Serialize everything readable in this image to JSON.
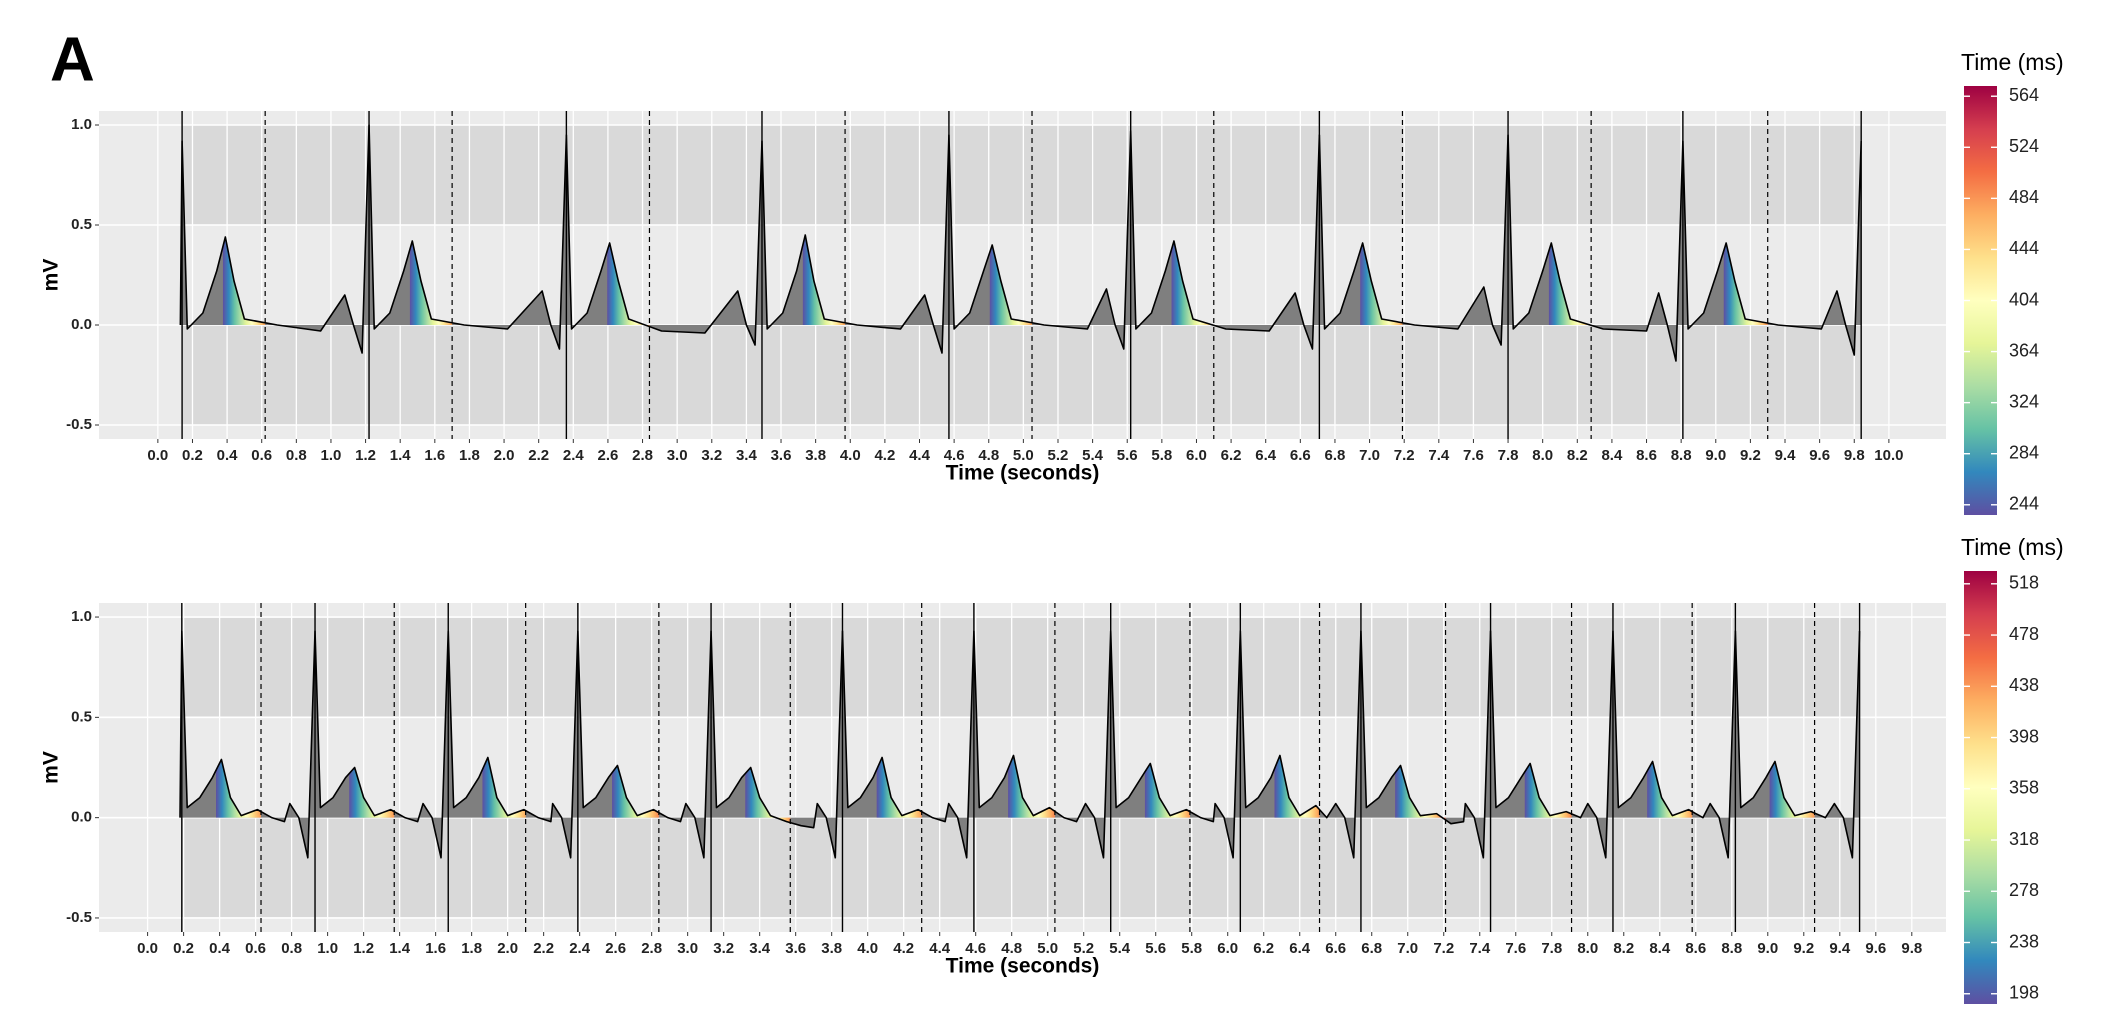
{
  "panel_label": "A",
  "chart_data": [
    {
      "type": "line",
      "x_label": "Time (seconds)",
      "y_label": "mV",
      "x": [
        0.13,
        0.14,
        0.17,
        0.26,
        0.34,
        0.39,
        0.44,
        0.5,
        0.69,
        0.94,
        1.08,
        1.13,
        1.18,
        1.22,
        1.25,
        1.34,
        1.42,
        1.47,
        1.52,
        1.58,
        1.77,
        2.02,
        2.22,
        2.27,
        2.32,
        2.36,
        2.39,
        2.48,
        2.56,
        2.61,
        2.66,
        2.72,
        2.91,
        3.16,
        3.35,
        3.4,
        3.45,
        3.49,
        3.52,
        3.61,
        3.69,
        3.74,
        3.79,
        3.85,
        4.04,
        4.29,
        4.43,
        4.48,
        4.53,
        4.57,
        4.6,
        4.69,
        4.77,
        4.82,
        4.87,
        4.93,
        5.12,
        5.37,
        5.48,
        5.53,
        5.58,
        5.62,
        5.65,
        5.74,
        5.82,
        5.87,
        5.92,
        5.98,
        6.17,
        6.42,
        6.57,
        6.62,
        6.67,
        6.71,
        6.74,
        6.83,
        6.91,
        6.96,
        7.01,
        7.07,
        7.26,
        7.51,
        7.66,
        7.71,
        7.76,
        7.8,
        7.83,
        7.92,
        8.0,
        8.05,
        8.1,
        8.16,
        8.35,
        8.6,
        8.67,
        8.72,
        8.77,
        8.81,
        8.84,
        8.93,
        9.01,
        9.06,
        9.11,
        9.17,
        9.36,
        9.61,
        9.7,
        9.75,
        9.8,
        9.84
      ],
      "y": [
        0,
        0.92,
        -0.02,
        0.06,
        0.27,
        0.44,
        0.22,
        0.03,
        0,
        -0.03,
        0.15,
        0,
        -0.14,
        1.0,
        -0.02,
        0.06,
        0.27,
        0.42,
        0.22,
        0.03,
        0,
        -0.02,
        0.17,
        0,
        -0.12,
        0.95,
        -0.02,
        0.06,
        0.27,
        0.41,
        0.22,
        0.03,
        -0.03,
        -0.04,
        0.17,
        0,
        -0.1,
        0.92,
        -0.02,
        0.06,
        0.27,
        0.45,
        0.22,
        0.03,
        0,
        -0.02,
        0.15,
        0,
        -0.14,
        0.95,
        -0.02,
        0.06,
        0.27,
        0.4,
        0.22,
        0.03,
        0,
        -0.02,
        0.18,
        0,
        -0.12,
        0.97,
        -0.02,
        0.06,
        0.27,
        0.42,
        0.22,
        0.03,
        -0.02,
        -0.03,
        0.16,
        0,
        -0.12,
        0.95,
        -0.02,
        0.06,
        0.27,
        0.41,
        0.22,
        0.03,
        0,
        -0.02,
        0.19,
        0,
        -0.1,
        0.95,
        -0.02,
        0.06,
        0.27,
        0.41,
        0.22,
        0.03,
        -0.02,
        -0.03,
        0.16,
        0,
        -0.18,
        0.92,
        -0.02,
        0.06,
        0.27,
        0.41,
        0.22,
        0.03,
        0,
        -0.02,
        0.17,
        0,
        -0.15,
        0.92
      ],
      "r_peaks": [
        0.14,
        1.22,
        2.36,
        3.49,
        4.57,
        5.62,
        6.71,
        7.8,
        8.81,
        9.84
      ],
      "t_ends": [
        0.62,
        1.7,
        2.84,
        3.97,
        5.05,
        6.1,
        7.19,
        8.28,
        9.3
      ],
      "xlim": [
        -0.34,
        10.33
      ],
      "ylim": [
        -0.57,
        1.07
      ],
      "xticks": [
        {
          "value": 0,
          "label": "0.0"
        },
        0.2,
        0.4,
        0.6,
        0.8,
        {
          "value": 1,
          "label": "1.0"
        },
        1.2,
        1.4,
        1.6,
        1.8,
        {
          "value": 2,
          "label": "2.0"
        },
        2.2,
        2.4,
        2.6,
        2.8,
        {
          "value": 3,
          "label": "3.0"
        },
        3.2,
        3.4,
        3.6,
        3.8,
        {
          "value": 4,
          "label": "4.0"
        },
        4.2,
        4.4,
        4.6,
        4.8,
        {
          "value": 5,
          "label": "5.0"
        },
        5.2,
        5.4,
        5.6,
        5.8,
        {
          "value": 6,
          "label": "6.0"
        },
        6.2,
        6.4,
        6.6,
        6.8,
        {
          "value": 7,
          "label": "7.0"
        },
        7.2,
        7.4,
        7.6,
        7.8,
        {
          "value": 8,
          "label": "8.0"
        },
        8.2,
        8.4,
        8.6,
        8.8,
        {
          "value": 9,
          "label": "9.0"
        },
        9.2,
        9.4,
        9.6,
        9.8,
        {
          "value": 10,
          "label": "10.0"
        }
      ],
      "yticks": [
        -0.5,
        {
          "value": 0,
          "label": "0.0"
        },
        0.5,
        {
          "value": 1,
          "label": "1.0"
        }
      ],
      "grid": true,
      "shaded_y": [
        [
          0.5,
          1.0
        ],
        [
          -0.5,
          0.0
        ]
      ],
      "line_color": "#000000",
      "area_color": "#7f7f7f",
      "colorbar": {
        "title": "Time (ms)",
        "lim": [
          236,
          572
        ],
        "ticks": [
          244,
          284,
          324,
          364,
          404,
          444,
          484,
          524,
          564
        ],
        "colors": [
          "#5e4fa2",
          "#3288bd",
          "#66c2a5",
          "#abdda4",
          "#e6f598",
          "#ffffbf",
          "#fee08b",
          "#fdae61",
          "#f46d43",
          "#d53e4f",
          "#9e0142"
        ]
      }
    },
    {
      "type": "line",
      "x_label": "Time (seconds)",
      "y_label": "mV",
      "x": [
        0.18,
        0.19,
        0.22,
        0.29,
        0.36,
        0.41,
        0.46,
        0.52,
        0.61,
        0.69,
        0.76,
        0.79,
        0.84,
        0.89,
        0.93,
        0.96,
        1.03,
        1.1,
        1.15,
        1.2,
        1.26,
        1.35,
        1.43,
        1.5,
        1.53,
        1.58,
        1.63,
        1.67,
        1.7,
        1.77,
        1.84,
        1.89,
        1.94,
        2.0,
        2.09,
        2.17,
        2.24,
        2.25,
        2.3,
        2.35,
        2.39,
        2.42,
        2.49,
        2.56,
        2.61,
        2.66,
        2.72,
        2.81,
        2.89,
        2.96,
        2.99,
        3.04,
        3.09,
        3.13,
        3.16,
        3.23,
        3.3,
        3.35,
        3.4,
        3.46,
        3.55,
        3.63,
        3.7,
        3.72,
        3.77,
        3.82,
        3.86,
        3.89,
        3.96,
        4.03,
        4.08,
        4.13,
        4.19,
        4.28,
        4.36,
        4.43,
        4.45,
        4.5,
        4.55,
        4.59,
        4.62,
        4.69,
        4.76,
        4.81,
        4.86,
        4.92,
        5.01,
        5.09,
        5.16,
        5.21,
        5.26,
        5.31,
        5.35,
        5.38,
        5.45,
        5.52,
        5.57,
        5.62,
        5.68,
        5.77,
        5.85,
        5.92,
        5.93,
        5.98,
        6.03,
        6.07,
        6.1,
        6.17,
        6.24,
        6.29,
        6.34,
        6.4,
        6.49,
        6.55,
        6.6,
        6.65,
        6.7,
        6.74,
        6.77,
        6.84,
        6.91,
        6.96,
        7.01,
        7.07,
        7.16,
        7.24,
        7.31,
        7.32,
        7.37,
        7.42,
        7.46,
        7.49,
        7.56,
        7.63,
        7.68,
        7.73,
        7.79,
        7.88,
        7.96,
        8.0,
        8.05,
        8.1,
        8.14,
        8.17,
        8.24,
        8.31,
        8.36,
        8.41,
        8.47,
        8.56,
        8.64,
        8.68,
        8.73,
        8.78,
        8.82,
        8.85,
        8.92,
        8.99,
        9.04,
        9.09,
        9.15,
        9.24,
        9.32,
        9.37,
        9.42,
        9.47,
        9.51
      ],
      "y": [
        0,
        0.93,
        0.05,
        0.1,
        0.2,
        0.29,
        0.1,
        0.01,
        0.04,
        0,
        -0.02,
        0.07,
        0,
        -0.2,
        0.93,
        0.05,
        0.1,
        0.2,
        0.25,
        0.1,
        0.01,
        0.04,
        0,
        -0.02,
        0.07,
        0,
        -0.2,
        0.93,
        0.05,
        0.1,
        0.2,
        0.3,
        0.1,
        0.01,
        0.04,
        0,
        -0.02,
        0.07,
        0,
        -0.2,
        0.93,
        0.05,
        0.1,
        0.2,
        0.26,
        0.1,
        0.01,
        0.04,
        0,
        -0.02,
        0.07,
        0,
        -0.2,
        0.93,
        0.05,
        0.1,
        0.2,
        0.25,
        0.1,
        0.01,
        -0.02,
        -0.04,
        -0.05,
        0.07,
        0,
        -0.2,
        0.93,
        0.05,
        0.1,
        0.2,
        0.3,
        0.1,
        0.01,
        0.04,
        0,
        -0.02,
        0.07,
        0,
        -0.2,
        0.93,
        0.05,
        0.1,
        0.2,
        0.31,
        0.1,
        0.01,
        0.05,
        0,
        -0.02,
        0.07,
        0,
        -0.2,
        0.93,
        0.05,
        0.1,
        0.2,
        0.27,
        0.1,
        0.01,
        0.04,
        0,
        -0.02,
        0.07,
        0,
        -0.2,
        0.93,
        0.05,
        0.1,
        0.2,
        0.31,
        0.1,
        0.01,
        0.06,
        0,
        0.07,
        0,
        -0.2,
        0.93,
        0.05,
        0.1,
        0.2,
        0.26,
        0.1,
        0.01,
        0.02,
        -0.03,
        -0.02,
        0.07,
        0,
        -0.2,
        0.93,
        0.05,
        0.1,
        0.2,
        0.27,
        0.1,
        0.01,
        0.03,
        0,
        0.07,
        0,
        -0.2,
        0.93,
        0.05,
        0.1,
        0.2,
        0.28,
        0.1,
        0.01,
        0.04,
        0,
        0.07,
        0,
        -0.2,
        0.93,
        0.05,
        0.1,
        0.2,
        0.28,
        0.1,
        0.01,
        0.03,
        0,
        0.07,
        0,
        -0.2,
        0.93
      ],
      "r_peaks": [
        0.19,
        0.93,
        1.67,
        2.39,
        3.13,
        3.86,
        4.59,
        5.35,
        6.07,
        6.74,
        7.46,
        8.14,
        8.82,
        9.51
      ],
      "t_ends": [
        0.63,
        1.37,
        2.1,
        2.84,
        3.57,
        4.3,
        5.04,
        5.79,
        6.51,
        7.21,
        7.91,
        8.58,
        9.26
      ],
      "xlim": [
        -0.27,
        9.99
      ],
      "ylim": [
        -0.57,
        1.07
      ],
      "xticks": [
        {
          "value": 0,
          "label": "0.0"
        },
        0.2,
        0.4,
        0.6,
        0.8,
        {
          "value": 1,
          "label": "1.0"
        },
        1.2,
        1.4,
        1.6,
        1.8,
        {
          "value": 2,
          "label": "2.0"
        },
        2.2,
        2.4,
        2.6,
        2.8,
        {
          "value": 3,
          "label": "3.0"
        },
        3.2,
        3.4,
        3.6,
        3.8,
        {
          "value": 4,
          "label": "4.0"
        },
        4.2,
        4.4,
        4.6,
        4.8,
        {
          "value": 5,
          "label": "5.0"
        },
        5.2,
        5.4,
        5.6,
        5.8,
        {
          "value": 6,
          "label": "6.0"
        },
        6.2,
        6.4,
        6.6,
        6.8,
        {
          "value": 7,
          "label": "7.0"
        },
        7.2,
        7.4,
        7.6,
        7.8,
        {
          "value": 8,
          "label": "8.0"
        },
        8.2,
        8.4,
        8.6,
        8.8,
        {
          "value": 9,
          "label": "9.0"
        },
        9.2,
        9.4,
        9.6,
        9.8
      ],
      "yticks": [
        -0.5,
        {
          "value": 0,
          "label": "0.0"
        },
        0.5,
        {
          "value": 1,
          "label": "1.0"
        }
      ],
      "grid": true,
      "shaded_y": [
        [
          0.5,
          1.0
        ],
        [
          -0.5,
          0.0
        ]
      ],
      "line_color": "#000000",
      "area_color": "#7f7f7f",
      "colorbar": {
        "title": "Time (ms)",
        "lim": [
          190,
          528
        ],
        "ticks": [
          198,
          238,
          278,
          318,
          358,
          398,
          438,
          478,
          518
        ],
        "colors": [
          "#5e4fa2",
          "#3288bd",
          "#66c2a5",
          "#abdda4",
          "#e6f598",
          "#ffffbf",
          "#fee08b",
          "#fdae61",
          "#f46d43",
          "#d53e4f",
          "#9e0142"
        ]
      }
    }
  ]
}
